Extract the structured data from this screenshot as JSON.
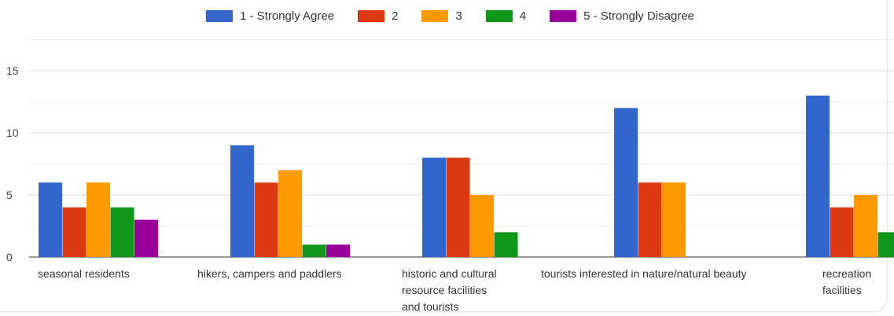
{
  "chart_data": {
    "type": "bar",
    "categories": [
      "seasonal residents",
      "hikers, campers and paddlers",
      "historic and cultural resource facilities and tourists",
      "tourists interested in nature/natural beauty",
      "recreation facilities"
    ],
    "category_lines": [
      [
        "seasonal residents"
      ],
      [
        "hikers, campers and paddlers"
      ],
      [
        "historic and cultural",
        "resource facilities",
        "and tourists"
      ],
      [
        "tourists interested in nature/natural beauty"
      ],
      [
        "recreation",
        "facilities"
      ]
    ],
    "series": [
      {
        "name": "1 - Strongly Agree",
        "color": "#3366cc",
        "values": [
          6,
          9,
          8,
          12,
          13
        ]
      },
      {
        "name": "2",
        "color": "#dc3912",
        "values": [
          4,
          6,
          8,
          6,
          4
        ]
      },
      {
        "name": "3",
        "color": "#ff9900",
        "values": [
          6,
          7,
          5,
          6,
          5
        ]
      },
      {
        "name": "4",
        "color": "#109618",
        "values": [
          4,
          1,
          2,
          0,
          2
        ]
      },
      {
        "name": "5 - Strongly Disagree",
        "color": "#990099",
        "values": [
          3,
          1,
          0,
          0,
          0
        ]
      }
    ],
    "yticks": [
      0,
      5,
      10,
      15
    ],
    "ylim": [
      0,
      17.5
    ],
    "grid": true,
    "legend_position": "top"
  }
}
